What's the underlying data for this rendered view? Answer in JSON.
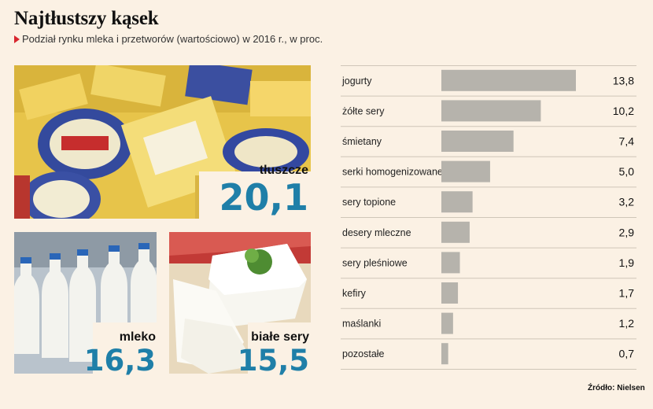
{
  "title": "Najtłustszy kąsek",
  "subtitle": "Podział rynku mleka i przetworów (wartościowo) w 2016 r., w proc.",
  "source": "Źródło: Nielsen",
  "colors": {
    "accent": "#1f7fa8",
    "bar": "#b6b3ac",
    "marker": "#d8262e",
    "background": "#fbf1e4"
  },
  "highlights": [
    {
      "label": "tłuszcze",
      "value": "20,1"
    },
    {
      "label": "mleko",
      "value": "16,3"
    },
    {
      "label": "białe sery",
      "value": "15,5"
    }
  ],
  "chart_data": {
    "type": "bar",
    "orientation": "horizontal",
    "title": "",
    "xlabel": "",
    "ylabel": "",
    "categories": [
      "jogurty",
      "żółte sery",
      "śmietany",
      "serki homogenizowane",
      "sery topione",
      "desery mleczne",
      "sery pleśniowe",
      "kefiry",
      "maślanki",
      "pozostałe"
    ],
    "values": [
      13.8,
      10.2,
      7.4,
      5.0,
      3.2,
      2.9,
      1.9,
      1.7,
      1.2,
      0.7
    ],
    "value_labels": [
      "13,8",
      "10,2",
      "7,4",
      "5,0",
      "3,2",
      "2,9",
      "1,9",
      "1,7",
      "1,2",
      "0,7"
    ],
    "xlim": [
      0,
      13.8
    ],
    "grid": false,
    "legend": "none"
  }
}
